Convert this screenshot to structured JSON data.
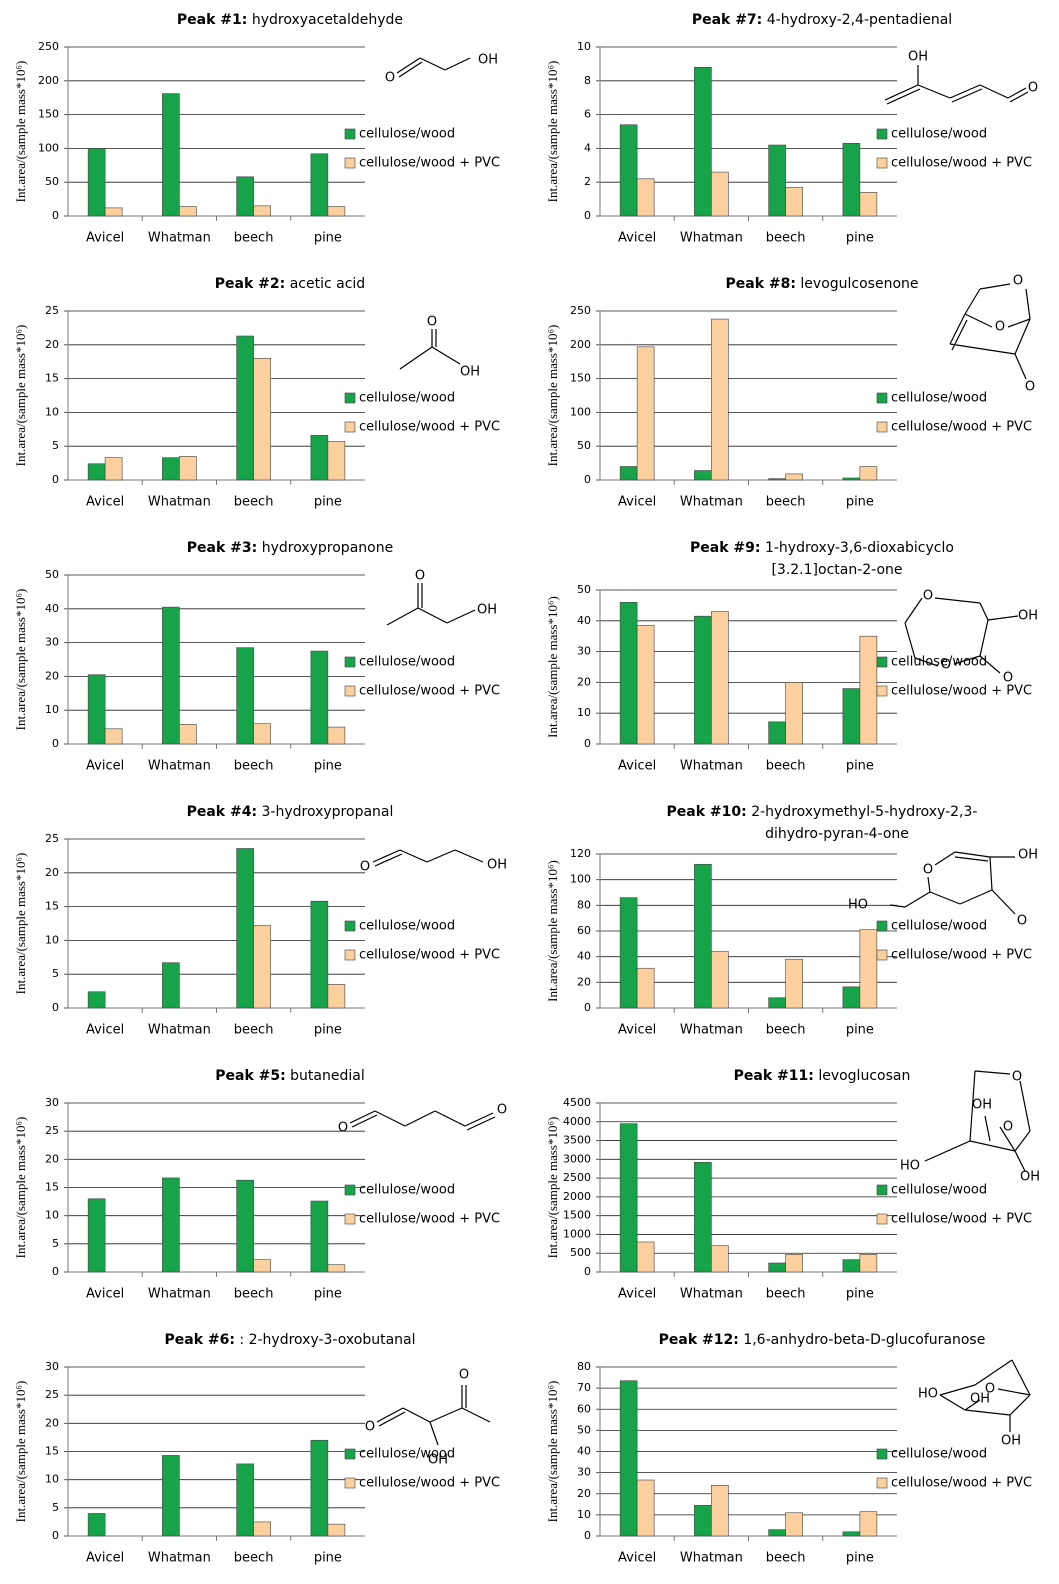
{
  "chart_data": [
    {
      "type": "bar",
      "peak": "Peak #1:",
      "title": "hydroxyacetaldehyde",
      "ylabel": "Int.area/(sample mass*10⁶)",
      "categories": [
        "Avicel",
        "Whatman",
        "beech",
        "pine"
      ],
      "series": [
        {
          "name": "cellulose/wood",
          "color": "#16a34a",
          "values": [
            100,
            181,
            58,
            92
          ]
        },
        {
          "name": "cellulose/wood + PVC",
          "color": "#fbcf9e",
          "values": [
            12,
            14,
            15,
            14
          ]
        }
      ],
      "ylim": [
        0,
        250
      ],
      "yticks": [
        0,
        50,
        100,
        150,
        200,
        250
      ],
      "grid": true,
      "legend": "right",
      "structure_labels": [
        "O",
        "OH"
      ]
    },
    {
      "type": "bar",
      "peak": "Peak #2:",
      "title": "acetic acid",
      "ylabel": "Int.area/(sample mass*10⁶)",
      "categories": [
        "Avicel",
        "Whatman",
        "beech",
        "pine"
      ],
      "series": [
        {
          "name": "cellulose/wood",
          "color": "#16a34a",
          "values": [
            2.4,
            3.3,
            21.3,
            6.6
          ]
        },
        {
          "name": "cellulose/wood + PVC",
          "color": "#fbcf9e",
          "values": [
            3.3,
            3.5,
            18,
            5.7
          ]
        }
      ],
      "ylim": [
        0,
        25
      ],
      "yticks": [
        0,
        5,
        10,
        15,
        20,
        25
      ],
      "grid": true,
      "legend": "right",
      "structure_labels": [
        "O",
        "OH"
      ]
    },
    {
      "type": "bar",
      "peak": "Peak #3:",
      "title": "hydroxypropanone",
      "ylabel": "Int.area/(sample mass*10⁶)",
      "categories": [
        "Avicel",
        "Whatman",
        "beech",
        "pine"
      ],
      "series": [
        {
          "name": "cellulose/wood",
          "color": "#16a34a",
          "values": [
            20.5,
            40.5,
            28.5,
            27.5
          ]
        },
        {
          "name": "cellulose/wood + PVC",
          "color": "#fbcf9e",
          "values": [
            4.5,
            5.8,
            6,
            5
          ]
        }
      ],
      "ylim": [
        0,
        50
      ],
      "yticks": [
        0,
        10,
        20,
        30,
        40,
        50
      ],
      "grid": true,
      "legend": "right",
      "structure_labels": [
        "O",
        "OH"
      ]
    },
    {
      "type": "bar",
      "peak": "Peak #4:",
      "title": "3-hydroxypropanal",
      "ylabel": "Int.area/(sample mass*10⁶)",
      "categories": [
        "Avicel",
        "Whatman",
        "beech",
        "pine"
      ],
      "series": [
        {
          "name": "cellulose/wood",
          "color": "#16a34a",
          "values": [
            2.4,
            6.7,
            23.6,
            15.8
          ]
        },
        {
          "name": "cellulose/wood + PVC",
          "color": "#fbcf9e",
          "values": [
            0,
            0,
            12.2,
            3.5
          ]
        }
      ],
      "ylim": [
        0,
        25
      ],
      "yticks": [
        0,
        5,
        10,
        15,
        20,
        25
      ],
      "grid": true,
      "legend": "right",
      "structure_labels": [
        "O",
        "OH"
      ]
    },
    {
      "type": "bar",
      "peak": "Peak #5:",
      "title": "butanedial",
      "ylabel": "Int.area/(sample mass*10⁶)",
      "categories": [
        "Avicel",
        "Whatman",
        "beech",
        "pine"
      ],
      "series": [
        {
          "name": "cellulose/wood",
          "color": "#16a34a",
          "values": [
            13,
            16.7,
            16.3,
            12.6
          ]
        },
        {
          "name": "cellulose/wood + PVC",
          "color": "#fbcf9e",
          "values": [
            0,
            0,
            2.2,
            1.3
          ]
        }
      ],
      "ylim": [
        0,
        30
      ],
      "yticks": [
        0,
        5,
        10,
        15,
        20,
        25,
        30
      ],
      "grid": true,
      "legend": "right",
      "structure_labels": [
        "O",
        "O"
      ]
    },
    {
      "type": "bar",
      "peak": "Peak #6:",
      "title": ": 2-hydroxy-3-oxobutanal",
      "ylabel": "Int.area/(sample mass*10⁶)",
      "categories": [
        "Avicel",
        "Whatman",
        "beech",
        "pine"
      ],
      "series": [
        {
          "name": "cellulose/wood",
          "color": "#16a34a",
          "values": [
            4,
            14.3,
            12.8,
            17
          ]
        },
        {
          "name": "cellulose/wood + PVC",
          "color": "#fbcf9e",
          "values": [
            0,
            0,
            2.5,
            2.1
          ]
        }
      ],
      "ylim": [
        0,
        30
      ],
      "yticks": [
        0,
        5,
        10,
        15,
        20,
        25,
        30
      ],
      "grid": true,
      "legend": "right",
      "structure_labels": [
        "O",
        "O",
        "OH"
      ]
    },
    {
      "type": "bar",
      "peak": "Peak #7:",
      "title": "4-hydroxy-2,4-pentadienal",
      "ylabel": "Int.area/(sample mass*10⁶)",
      "categories": [
        "Avicel",
        "Whatman",
        "beech",
        "pine"
      ],
      "series": [
        {
          "name": "cellulose/wood",
          "color": "#16a34a",
          "values": [
            5.4,
            8.8,
            4.2,
            4.3
          ]
        },
        {
          "name": "cellulose/wood + PVC",
          "color": "#fbcf9e",
          "values": [
            2.2,
            2.6,
            1.7,
            1.4
          ]
        }
      ],
      "ylim": [
        0,
        10
      ],
      "yticks": [
        0,
        2,
        4,
        6,
        8,
        10
      ],
      "grid": true,
      "legend": "right",
      "structure_labels": [
        "OH",
        "O"
      ]
    },
    {
      "type": "bar",
      "peak": "Peak #8:",
      "title": "levogulcosenone",
      "ylabel": "Int.area/(sample mass*10⁶)",
      "categories": [
        "Avicel",
        "Whatman",
        "beech",
        "pine"
      ],
      "series": [
        {
          "name": "cellulose/wood",
          "color": "#16a34a",
          "values": [
            20,
            14,
            2,
            3
          ]
        },
        {
          "name": "cellulose/wood + PVC",
          "color": "#fbcf9e",
          "values": [
            197,
            238,
            9,
            20
          ]
        }
      ],
      "ylim": [
        0,
        250
      ],
      "yticks": [
        0,
        50,
        100,
        150,
        200,
        250
      ],
      "grid": true,
      "legend": "right",
      "structure_labels": [
        "O",
        "O",
        "O"
      ]
    },
    {
      "type": "bar",
      "peak": "Peak #9:",
      "title": [
        "1-hydroxy-3,6-dioxabicyclo",
        "[3.2.1]octan-2-one"
      ],
      "ylabel": "Int.area/(sample mass*10⁶)",
      "categories": [
        "Avicel",
        "Whatman",
        "beech",
        "pine"
      ],
      "series": [
        {
          "name": "cellulose/wood",
          "color": "#16a34a",
          "values": [
            46,
            41.5,
            7.2,
            18
          ]
        },
        {
          "name": "cellulose/wood + PVC",
          "color": "#fbcf9e",
          "values": [
            38.5,
            43,
            20,
            35
          ]
        }
      ],
      "ylim": [
        0,
        50
      ],
      "yticks": [
        0,
        10,
        20,
        30,
        40,
        50
      ],
      "grid": true,
      "legend": "right",
      "structure_labels": [
        "O",
        "OH",
        "O",
        "O"
      ]
    },
    {
      "type": "bar",
      "peak": "Peak #10:",
      "title": [
        "2-hydroxymethyl-5-hydroxy-2,3-",
        "dihydro-pyran-4-one"
      ],
      "ylabel": "Int.area/(sample mass*10⁶)",
      "categories": [
        "Avicel",
        "Whatman",
        "beech",
        "pine"
      ],
      "series": [
        {
          "name": "cellulose/wood",
          "color": "#16a34a",
          "values": [
            86,
            112,
            8,
            16.5
          ]
        },
        {
          "name": "cellulose/wood + PVC",
          "color": "#fbcf9e",
          "values": [
            31,
            44,
            38,
            61
          ]
        }
      ],
      "ylim": [
        0,
        120
      ],
      "yticks": [
        0,
        20,
        40,
        60,
        80,
        100,
        120
      ],
      "grid": true,
      "legend": "right",
      "structure_labels": [
        "O",
        "OH",
        "HO",
        "O"
      ]
    },
    {
      "type": "bar",
      "peak": "Peak #11:",
      "title": "levoglucosan",
      "ylabel": "Int.area/(sample mass*10⁶)",
      "categories": [
        "Avicel",
        "Whatman",
        "beech",
        "pine"
      ],
      "series": [
        {
          "name": "cellulose/wood",
          "color": "#16a34a",
          "values": [
            3950,
            2920,
            240,
            330
          ]
        },
        {
          "name": "cellulose/wood + PVC",
          "color": "#fbcf9e",
          "values": [
            800,
            700,
            470,
            470
          ]
        }
      ],
      "ylim": [
        0,
        4500
      ],
      "yticks": [
        0,
        500,
        1000,
        1500,
        2000,
        2500,
        3000,
        3500,
        4000,
        4500
      ],
      "grid": true,
      "legend": "right",
      "structure_labels": [
        "O",
        "OH",
        "O",
        "HO",
        "OH"
      ]
    },
    {
      "type": "bar",
      "peak": "Peak #12:",
      "title": "1,6-anhydro-beta-D-glucofuranose",
      "ylabel": "Int.area/(sample mass*10⁶)",
      "categories": [
        "Avicel",
        "Whatman",
        "beech",
        "pine"
      ],
      "series": [
        {
          "name": "cellulose/wood",
          "color": "#16a34a",
          "values": [
            73.5,
            14.5,
            3,
            2
          ]
        },
        {
          "name": "cellulose/wood + PVC",
          "color": "#fbcf9e",
          "values": [
            26.5,
            24,
            11,
            11.5
          ]
        }
      ],
      "ylim": [
        0,
        80
      ],
      "yticks": [
        0,
        10,
        20,
        30,
        40,
        50,
        60,
        70,
        80
      ],
      "grid": true,
      "legend": "right",
      "structure_labels": [
        "HO",
        "OH",
        "O",
        "OH"
      ]
    }
  ]
}
